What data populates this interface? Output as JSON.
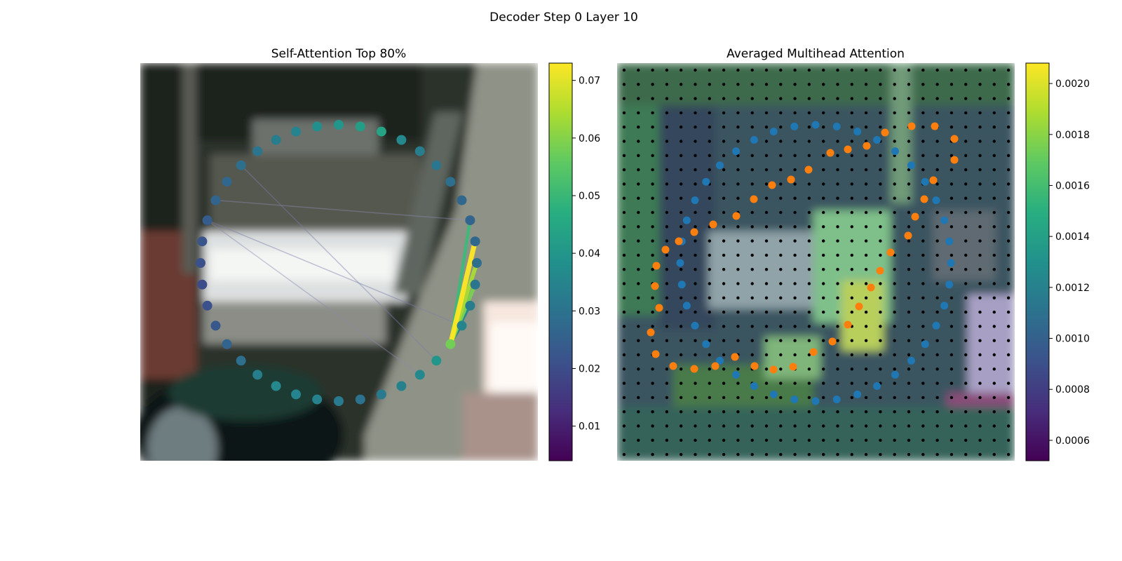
{
  "figure": {
    "suptitle": "Decoder Step 0 Layer 10"
  },
  "chart_data": [
    {
      "type": "scatter",
      "title": "Self-Attention Top 80%",
      "description_kind": "self-attention graph over 40 circular query points on image",
      "colormap": "viridis",
      "colorbar": {
        "range": [
          0.004,
          0.073
        ],
        "ticks": [
          0.01,
          0.02,
          0.03,
          0.04,
          0.05,
          0.06,
          0.07
        ]
      },
      "point_values": [
        0.04,
        0.038,
        0.035,
        0.033,
        0.031,
        0.029,
        0.027,
        0.026,
        0.024,
        0.022,
        0.021,
        0.02,
        0.021,
        0.023,
        0.026,
        0.029,
        0.033,
        0.036,
        0.035,
        0.034,
        0.032,
        0.03,
        0.032,
        0.034,
        0.036,
        0.04,
        0.058,
        0.035,
        0.033,
        0.031,
        0.029,
        0.027,
        0.026,
        0.027,
        0.029,
        0.031,
        0.033,
        0.036,
        0.044,
        0.042
      ],
      "edges": [
        {
          "from": 26,
          "to": 31,
          "weight": 0.072,
          "color": "#fde725"
        },
        {
          "from": 26,
          "to": 30,
          "weight": 0.06,
          "color": "#a9db33"
        },
        {
          "from": 26,
          "to": 29,
          "weight": 0.055,
          "color": "#7ad151"
        },
        {
          "from": 26,
          "to": 32,
          "weight": 0.048,
          "color": "#3fb77a"
        },
        {
          "from": 26,
          "to": 28,
          "weight": 0.035,
          "color": "#24868e"
        },
        {
          "from": 26,
          "to": 27,
          "weight": 0.03,
          "color": "#2a788e"
        },
        {
          "from": 27,
          "to": 8,
          "weight": 0.015,
          "color": "#7b7ea8"
        },
        {
          "from": 25,
          "to": 5,
          "weight": 0.015,
          "color": "#7b7ea8"
        },
        {
          "from": 24,
          "to": 8,
          "weight": 0.012,
          "color": "#8a8ab0"
        },
        {
          "from": 32,
          "to": 7,
          "weight": 0.012,
          "color": "#8a8ab0"
        }
      ]
    },
    {
      "type": "heatmap",
      "title": "Averaged Multihead Attention",
      "colormap": "viridis",
      "colorbar": {
        "range": [
          0.00052,
          0.00208
        ],
        "ticks": [
          0.0006,
          0.0008,
          0.001,
          0.0012,
          0.0014,
          0.0016,
          0.0018,
          0.002
        ]
      },
      "reference_grid": "28x28 black dots",
      "series": [
        {
          "marker_color": "#1f77b4"
        },
        {
          "marker_color": "#ff7f0e"
        }
      ]
    }
  ],
  "left_panel": {
    "title": "Self-Attention Top 80%",
    "colorbar_ticks": [
      "0.01",
      "0.02",
      "0.03",
      "0.04",
      "0.05",
      "0.06",
      "0.07"
    ]
  },
  "right_panel": {
    "title": "Averaged Multihead Attention",
    "colorbar_ticks": [
      "0.0006",
      "0.0008",
      "0.0010",
      "0.0012",
      "0.0014",
      "0.0016",
      "0.0018",
      "0.0020"
    ]
  }
}
